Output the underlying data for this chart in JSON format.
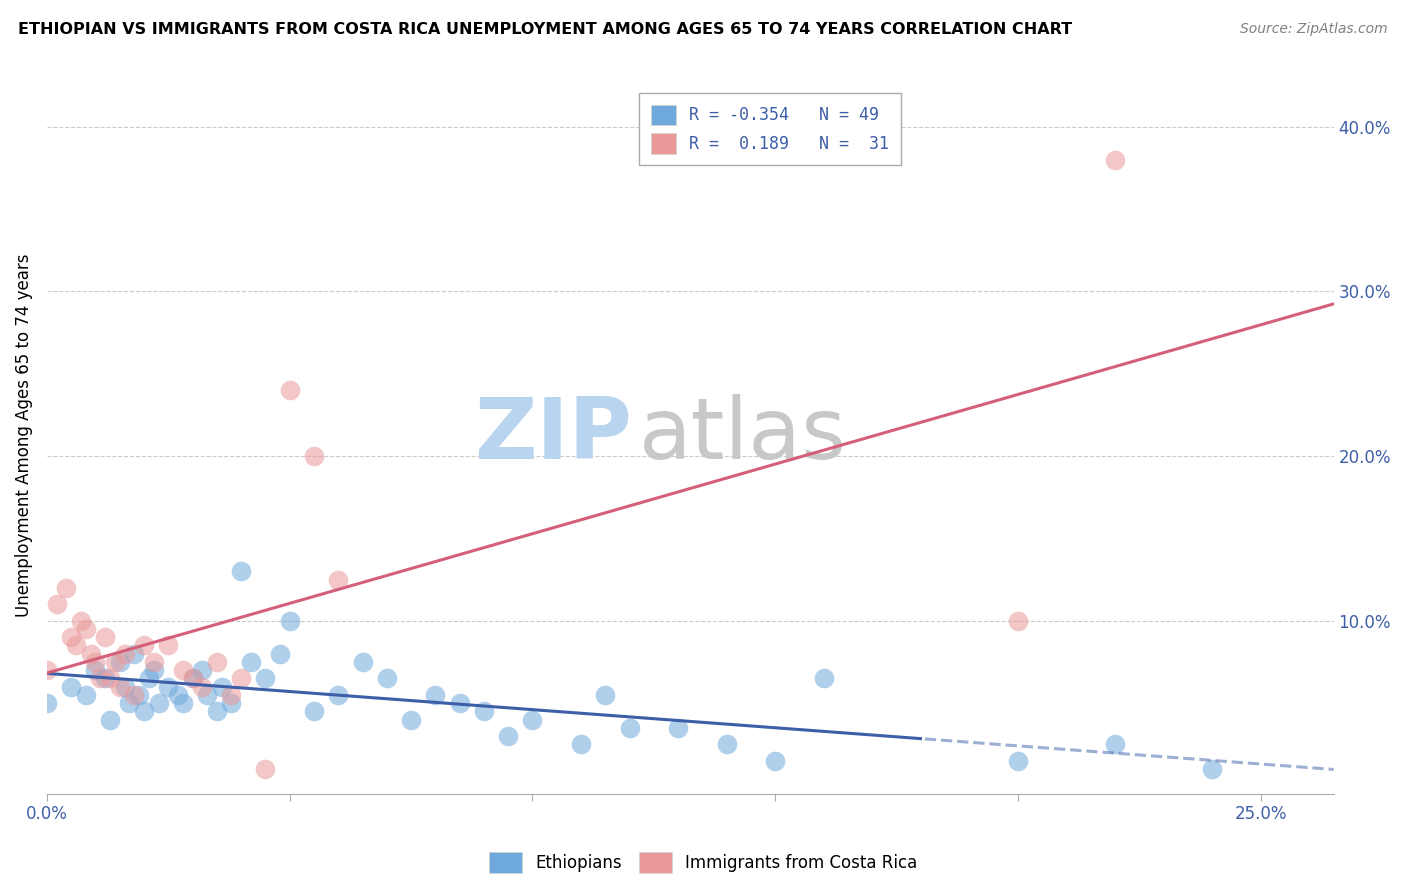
{
  "title": "ETHIOPIAN VS IMMIGRANTS FROM COSTA RICA UNEMPLOYMENT AMONG AGES 65 TO 74 YEARS CORRELATION CHART",
  "source_text": "Source: ZipAtlas.com",
  "ylabel": "Unemployment Among Ages 65 to 74 years",
  "right_yticks": [
    0.0,
    0.1,
    0.2,
    0.3,
    0.4
  ],
  "right_yticklabels": [
    "",
    "10.0%",
    "20.0%",
    "30.0%",
    "40.0%"
  ],
  "bottom_xticks": [
    0.0,
    0.05,
    0.1,
    0.15,
    0.2,
    0.25
  ],
  "bottom_xticklabels": [
    "0.0%",
    "",
    "",
    "",
    "",
    "25.0%"
  ],
  "xlim": [
    0.0,
    0.265
  ],
  "ylim": [
    -0.005,
    0.43
  ],
  "legend_R1": "R = -0.354",
  "legend_N1": "N = 49",
  "legend_R2": "R =  0.189",
  "legend_N2": "N =  31",
  "blue_color": "#6fa8dc",
  "pink_color": "#ea9999",
  "blue_line_color": "#3d5fa8",
  "pink_line_color": "#d45f7a",
  "ethiopians_scatter_x": [
    0.0,
    0.005,
    0.008,
    0.01,
    0.012,
    0.013,
    0.015,
    0.016,
    0.017,
    0.018,
    0.019,
    0.02,
    0.021,
    0.022,
    0.023,
    0.025,
    0.027,
    0.028,
    0.03,
    0.032,
    0.033,
    0.035,
    0.036,
    0.038,
    0.04,
    0.042,
    0.045,
    0.048,
    0.05,
    0.055,
    0.06,
    0.065,
    0.07,
    0.075,
    0.08,
    0.085,
    0.09,
    0.095,
    0.1,
    0.11,
    0.115,
    0.12,
    0.13,
    0.14,
    0.15,
    0.16,
    0.2,
    0.22,
    0.24
  ],
  "ethiopians_scatter_y": [
    0.05,
    0.06,
    0.055,
    0.07,
    0.065,
    0.04,
    0.075,
    0.06,
    0.05,
    0.08,
    0.055,
    0.045,
    0.065,
    0.07,
    0.05,
    0.06,
    0.055,
    0.05,
    0.065,
    0.07,
    0.055,
    0.045,
    0.06,
    0.05,
    0.13,
    0.075,
    0.065,
    0.08,
    0.1,
    0.045,
    0.055,
    0.075,
    0.065,
    0.04,
    0.055,
    0.05,
    0.045,
    0.03,
    0.04,
    0.025,
    0.055,
    0.035,
    0.035,
    0.025,
    0.015,
    0.065,
    0.015,
    0.025,
    0.01
  ],
  "costarica_scatter_x": [
    0.0,
    0.002,
    0.004,
    0.005,
    0.006,
    0.007,
    0.008,
    0.009,
    0.01,
    0.011,
    0.012,
    0.013,
    0.014,
    0.015,
    0.016,
    0.018,
    0.02,
    0.022,
    0.025,
    0.028,
    0.03,
    0.032,
    0.035,
    0.038,
    0.04,
    0.045,
    0.05,
    0.055,
    0.06,
    0.2,
    0.22
  ],
  "costarica_scatter_y": [
    0.07,
    0.11,
    0.12,
    0.09,
    0.085,
    0.1,
    0.095,
    0.08,
    0.075,
    0.065,
    0.09,
    0.065,
    0.075,
    0.06,
    0.08,
    0.055,
    0.085,
    0.075,
    0.085,
    0.07,
    0.065,
    0.06,
    0.075,
    0.055,
    0.065,
    0.01,
    0.24,
    0.2,
    0.125,
    0.1,
    0.38
  ],
  "watermark_zip": "ZIP",
  "watermark_atlas": "atlas",
  "watermark_color_zip": "#b8d4ee",
  "watermark_color_atlas": "#c8c8c8",
  "background_color": "#ffffff",
  "grid_color": "#cccccc"
}
